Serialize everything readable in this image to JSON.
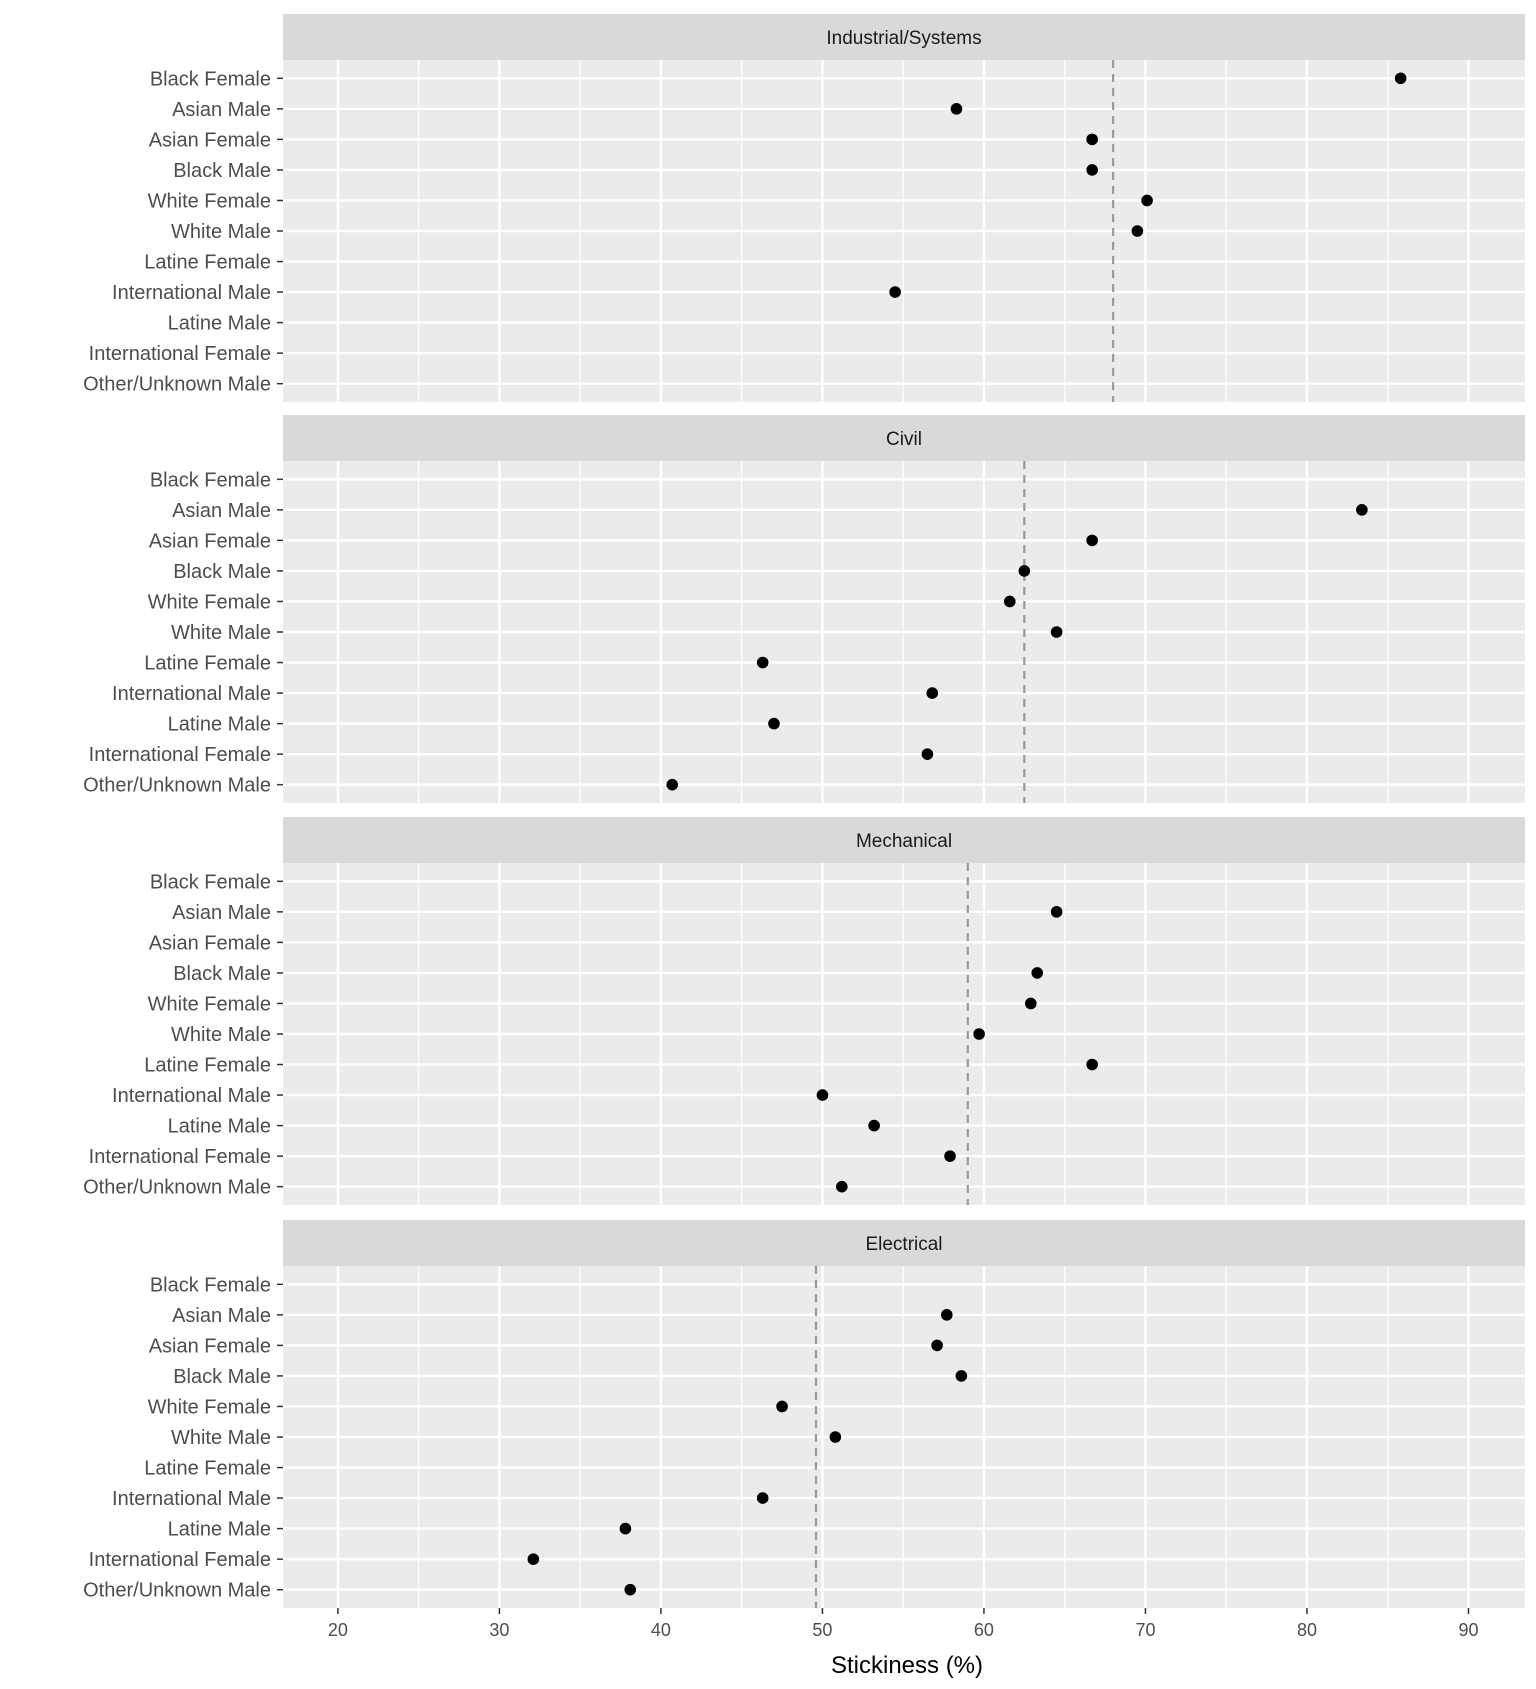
{
  "chart_data": {
    "type": "scatter",
    "xlabel": "Stickiness (%)",
    "ylabel": "",
    "xlim": [
      16.6,
      93.5
    ],
    "xticks": [
      20,
      30,
      40,
      50,
      60,
      70,
      80,
      90
    ],
    "grid": true,
    "categories": [
      "Black Female",
      "Asian Male",
      "Asian Female",
      "Black Male",
      "White Female",
      "White Male",
      "Latine Female",
      "International Male",
      "Latine Male",
      "International Female",
      "Other/Unknown Male"
    ],
    "panels": [
      {
        "name": "Industrial/Systems",
        "mean_line": 68.0,
        "values": [
          85.8,
          58.3,
          66.7,
          66.7,
          70.1,
          69.5,
          null,
          54.5,
          null,
          null,
          null
        ]
      },
      {
        "name": "Civil",
        "mean_line": 62.5,
        "values": [
          null,
          83.4,
          66.7,
          62.5,
          61.6,
          64.5,
          46.3,
          56.8,
          47.0,
          56.5,
          40.7
        ]
      },
      {
        "name": "Mechanical",
        "mean_line": 59.0,
        "values": [
          null,
          64.5,
          null,
          63.3,
          62.9,
          59.7,
          66.7,
          50.0,
          53.2,
          57.9,
          51.2
        ]
      },
      {
        "name": "Electrical",
        "mean_line": 49.6,
        "values": [
          null,
          57.7,
          57.1,
          58.6,
          47.5,
          50.8,
          null,
          46.3,
          37.8,
          32.1,
          38.1
        ]
      }
    ],
    "colors": {
      "panel_bg": "#ebebeb",
      "strip_bg": "#d9d9d9",
      "point": "#000000",
      "mean_line": "#999999"
    }
  }
}
